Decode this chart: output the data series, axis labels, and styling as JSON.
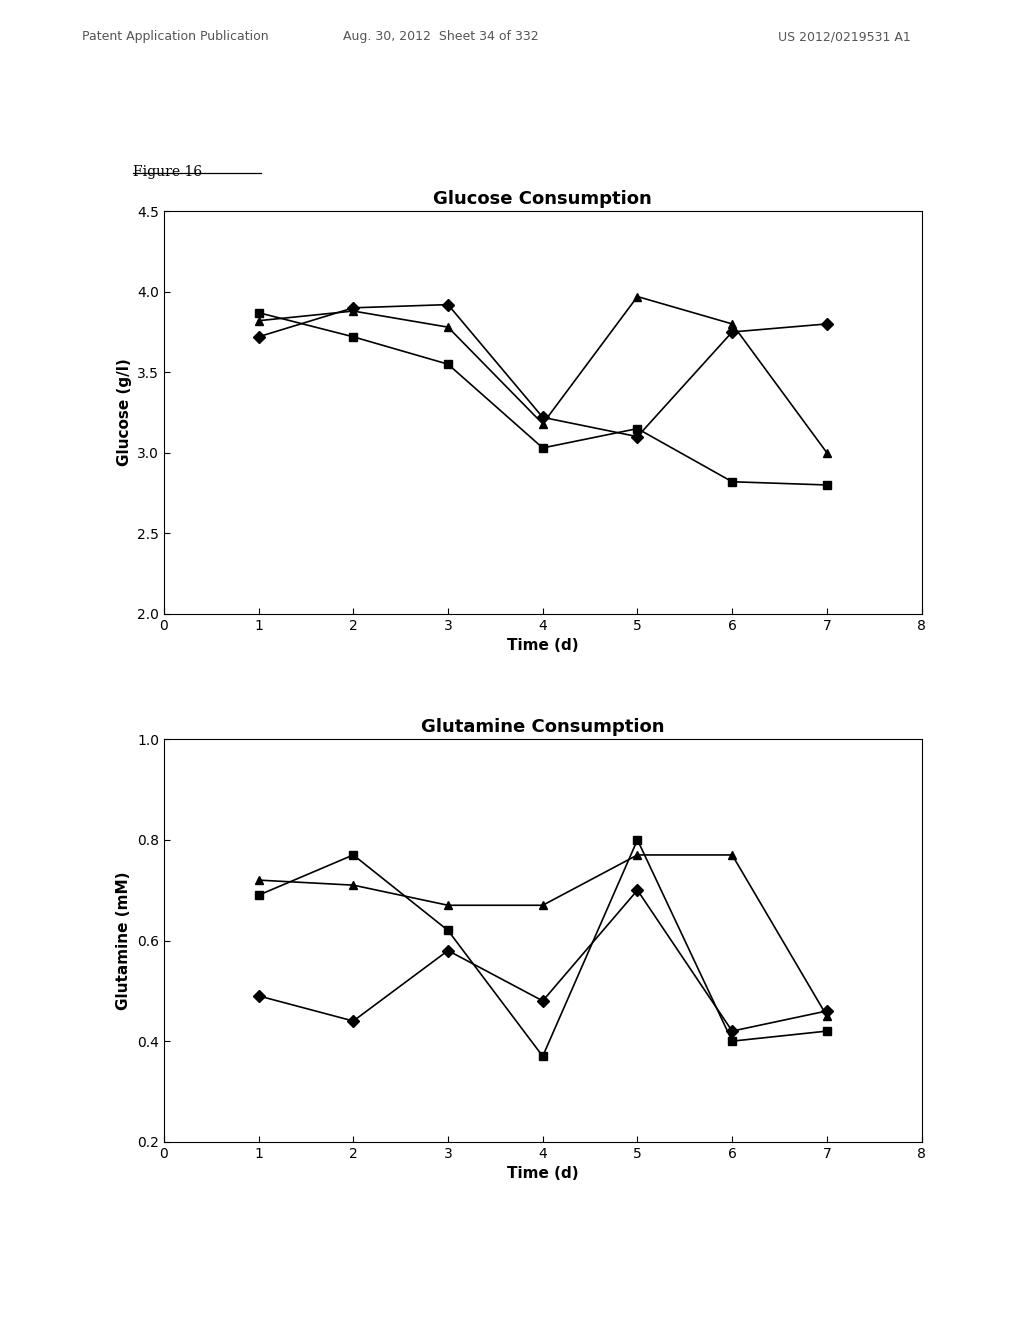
{
  "glucose_title": "Glucose Consumption",
  "glucose_ylabel": "Glucose (g/l)",
  "glucose_xlabel": "Time (d)",
  "glucose_xlim": [
    0,
    8
  ],
  "glucose_ylim": [
    2.0,
    4.5
  ],
  "glucose_yticks": [
    2.0,
    2.5,
    3.0,
    3.5,
    4.0,
    4.5
  ],
  "glucose_xticks": [
    0,
    1,
    2,
    3,
    4,
    5,
    6,
    7,
    8
  ],
  "glucose_series": [
    {
      "marker": "D",
      "x": [
        1,
        2,
        3,
        4,
        5,
        6,
        7
      ],
      "y": [
        3.72,
        3.9,
        3.92,
        3.22,
        3.1,
        3.75,
        3.8
      ]
    },
    {
      "marker": "^",
      "x": [
        1,
        2,
        3,
        4,
        5,
        6,
        7
      ],
      "y": [
        3.82,
        3.88,
        3.78,
        3.18,
        3.97,
        3.8,
        3.0
      ]
    },
    {
      "marker": "s",
      "x": [
        1,
        2,
        3,
        4,
        5,
        6,
        7
      ],
      "y": [
        3.87,
        3.72,
        3.55,
        3.03,
        3.15,
        2.82,
        2.8
      ]
    }
  ],
  "glutamine_title": "Glutamine Consumption",
  "glutamine_ylabel": "Glutamine (mM)",
  "glutamine_xlabel": "Time (d)",
  "glutamine_xlim": [
    0,
    8
  ],
  "glutamine_ylim": [
    0.2,
    1.0
  ],
  "glutamine_yticks": [
    0.2,
    0.4,
    0.6,
    0.8,
    1.0
  ],
  "glutamine_xticks": [
    0,
    1,
    2,
    3,
    4,
    5,
    6,
    7,
    8
  ],
  "glutamine_series": [
    {
      "marker": "D",
      "x": [
        1,
        2,
        3,
        4,
        5,
        6,
        7
      ],
      "y": [
        0.49,
        0.44,
        0.58,
        0.48,
        0.7,
        0.42,
        0.46
      ]
    },
    {
      "marker": "^",
      "x": [
        1,
        2,
        3,
        4,
        5,
        6,
        7
      ],
      "y": [
        0.72,
        0.71,
        0.67,
        0.67,
        0.77,
        0.77,
        0.45
      ]
    },
    {
      "marker": "s",
      "x": [
        1,
        2,
        3,
        4,
        5,
        6,
        7
      ],
      "y": [
        0.69,
        0.77,
        0.62,
        0.37,
        0.8,
        0.4,
        0.42
      ]
    }
  ],
  "figure_label": "Figure 16",
  "header_left": "Patent Application Publication",
  "header_center": "Aug. 30, 2012  Sheet 34 of 332",
  "header_right": "US 2012/0219531 A1",
  "line_color": "#000000",
  "linewidth": 1.2,
  "markersize": 6,
  "title_fontsize": 13,
  "label_fontsize": 11,
  "tick_fontsize": 10,
  "header_fontsize": 9,
  "figure_label_fontsize": 10
}
